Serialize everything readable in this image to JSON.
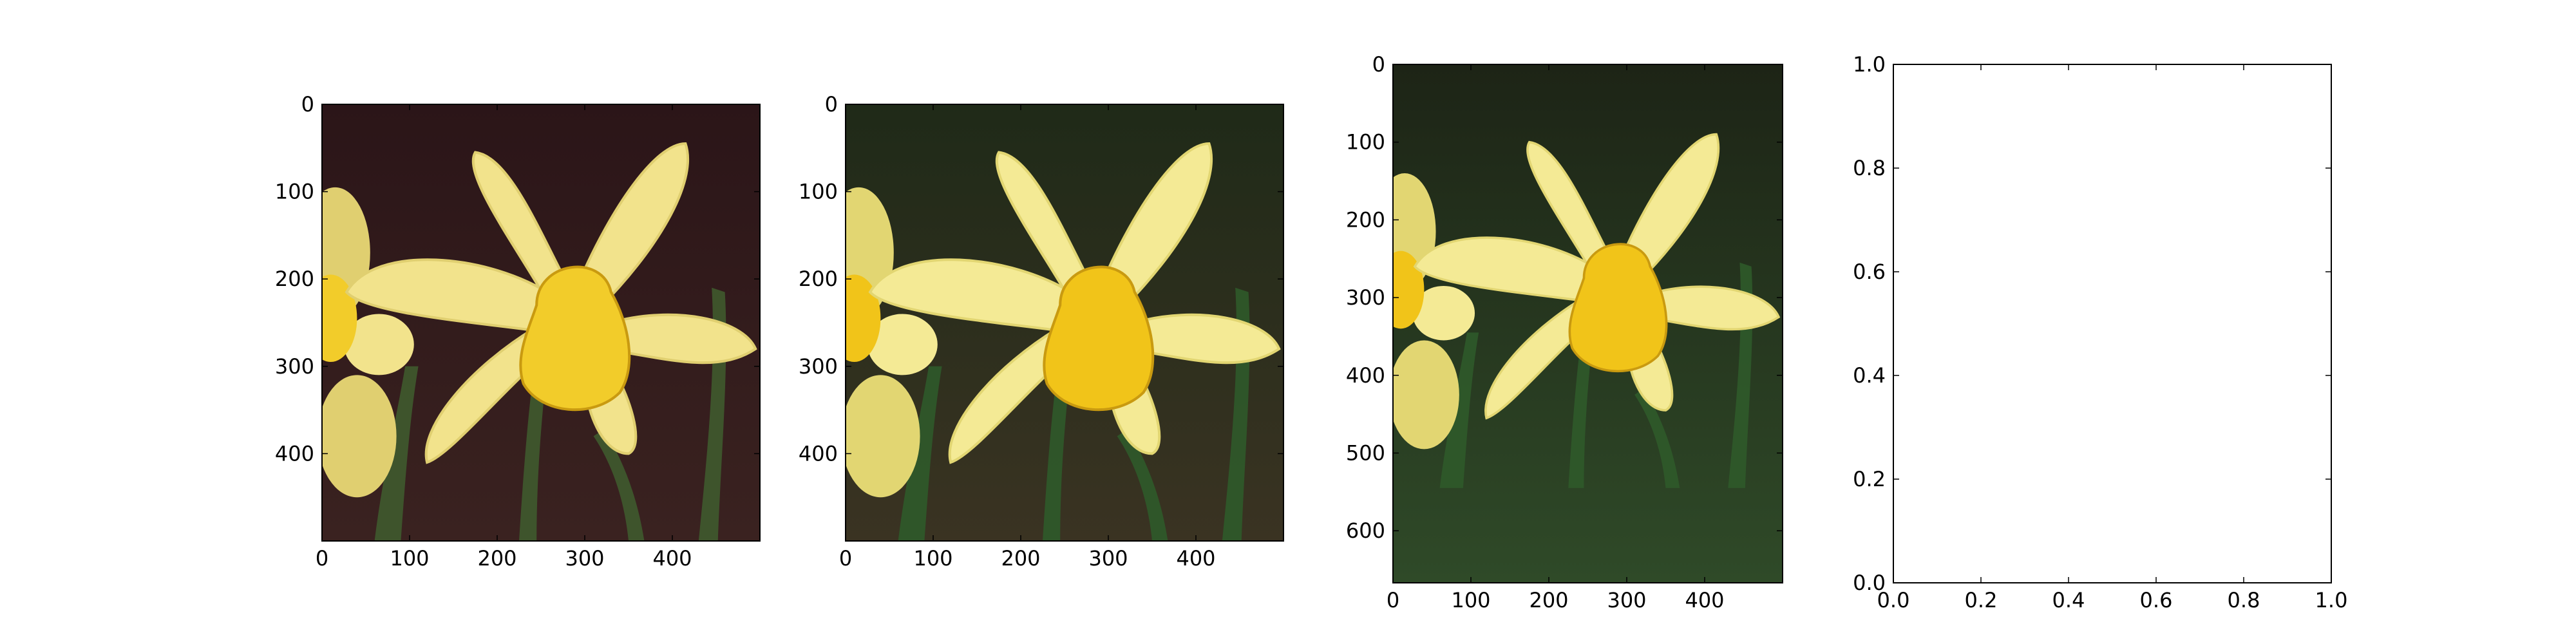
{
  "colors": {
    "background": "#ffffff",
    "axes_edge": "#000000",
    "tick_text": "#000000"
  },
  "chart_data": [
    {
      "type": "image",
      "content": "photo of a yellow daffodil, vintage-toned with purple-brown vignette",
      "palette": {
        "bg_top": "#2b1518",
        "bg_bottom": "#3a2220",
        "petal": "#f2e38c",
        "petal_edge": "#e0cf70",
        "trumpet": "#f2cc2a",
        "stem": "#3f5a2e"
      },
      "x": {
        "range": [
          0,
          500
        ],
        "ticks": [
          0,
          100,
          200,
          300,
          400
        ],
        "tick_labels": [
          "0",
          "100",
          "200",
          "300",
          "400"
        ]
      },
      "y": {
        "range": [
          0,
          500
        ],
        "inverted": true,
        "ticks": [
          0,
          100,
          200,
          300,
          400
        ],
        "tick_labels": [
          "0",
          "100",
          "200",
          "300",
          "400"
        ]
      }
    },
    {
      "type": "image",
      "content": "photo of a yellow daffodil, natural colors with green background",
      "palette": {
        "bg_top": "#1f2a18",
        "bg_bottom": "#3a3322",
        "petal": "#f4ea95",
        "petal_edge": "#e2d672",
        "trumpet": "#f1c419",
        "stem": "#2f5a2a"
      },
      "x": {
        "range": [
          0,
          500
        ],
        "ticks": [
          0,
          100,
          200,
          300,
          400
        ],
        "tick_labels": [
          "0",
          "100",
          "200",
          "300",
          "400"
        ]
      },
      "y": {
        "range": [
          0,
          500
        ],
        "inverted": true,
        "ticks": [
          0,
          100,
          200,
          300,
          400
        ],
        "tick_labels": [
          "0",
          "100",
          "200",
          "300",
          "400"
        ]
      }
    },
    {
      "type": "image",
      "content": "photo of a yellow daffodil, taller crop with green foliage below",
      "palette": {
        "bg_top": "#1d2416",
        "bg_bottom": "#2f4a28",
        "petal": "#f4ea95",
        "petal_edge": "#e2d672",
        "trumpet": "#f1c419",
        "stem": "#2f5a2a"
      },
      "x": {
        "range": [
          0,
          500
        ],
        "ticks": [
          0,
          100,
          200,
          300,
          400
        ],
        "tick_labels": [
          "0",
          "100",
          "200",
          "300",
          "400"
        ]
      },
      "y": {
        "range": [
          0,
          667
        ],
        "inverted": true,
        "ticks": [
          0,
          100,
          200,
          300,
          400,
          500,
          600
        ],
        "tick_labels": [
          "0",
          "100",
          "200",
          "300",
          "400",
          "500",
          "600"
        ]
      }
    },
    {
      "type": "empty",
      "x": {
        "range": [
          0.0,
          1.0
        ],
        "ticks": [
          0.0,
          0.2,
          0.4,
          0.6,
          0.8,
          1.0
        ],
        "tick_labels": [
          "0.0",
          "0.2",
          "0.4",
          "0.6",
          "0.8",
          "1.0"
        ]
      },
      "y": {
        "range": [
          0.0,
          1.0
        ],
        "inverted": false,
        "ticks": [
          0.0,
          0.2,
          0.4,
          0.6,
          0.8,
          1.0
        ],
        "tick_labels": [
          "0.0",
          "0.2",
          "0.4",
          "0.6",
          "0.8",
          "1.0"
        ]
      }
    }
  ]
}
